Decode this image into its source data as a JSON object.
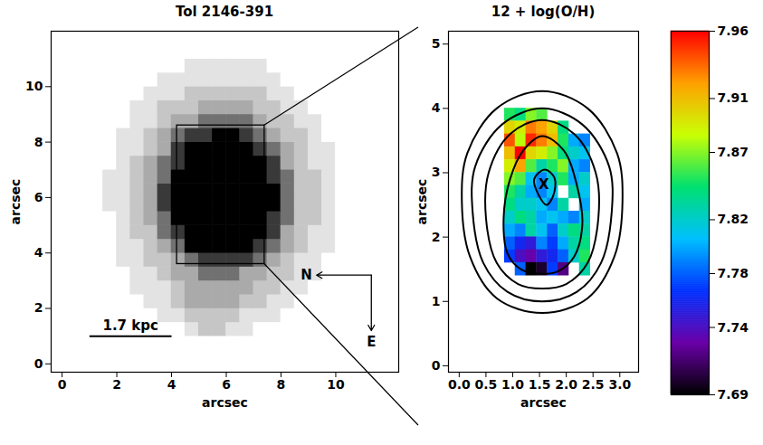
{
  "chart_data": [
    {
      "type": "image",
      "title": "Tol 2146-391",
      "xlabel": "arcsec",
      "ylabel": "arcsec",
      "xlim": [
        -0.4,
        12.3
      ],
      "ylim": [
        -0.3,
        12.0
      ],
      "xticks": [
        0,
        2,
        4,
        6,
        8,
        10
      ],
      "yticks": [
        0,
        2,
        4,
        6,
        8,
        10
      ],
      "image": {
        "x0": 0,
        "y0": 0,
        "cell": 0.5,
        "values": [
          [
            0,
            0,
            0,
            0,
            0,
            0,
            0,
            0,
            0,
            0,
            0,
            0,
            0,
            0,
            0,
            0,
            0,
            0,
            0,
            0,
            0,
            0,
            0,
            0
          ],
          [
            0,
            0,
            0,
            0,
            0,
            0,
            0,
            0,
            0,
            0,
            0,
            0,
            0,
            0,
            0,
            0,
            0,
            0,
            0,
            0,
            0,
            0,
            0,
            0
          ],
          [
            0,
            0,
            0,
            0,
            0,
            0,
            0,
            0,
            0,
            1,
            2,
            2,
            1,
            1,
            0,
            0,
            0,
            0,
            0,
            0,
            0,
            0,
            0,
            0
          ],
          [
            0,
            0,
            0,
            0,
            0,
            0,
            0,
            1,
            1,
            2,
            2,
            2,
            2,
            1,
            1,
            1,
            0,
            0,
            0,
            0,
            0,
            0,
            0,
            0
          ],
          [
            0,
            0,
            0,
            0,
            0,
            0,
            1,
            1,
            2,
            3,
            3,
            3,
            3,
            2,
            2,
            1,
            1,
            0,
            0,
            0,
            0,
            0,
            0,
            0
          ],
          [
            0,
            0,
            0,
            0,
            0,
            1,
            1,
            1,
            2,
            3,
            3,
            3,
            3,
            3,
            2,
            2,
            1,
            1,
            0,
            0,
            0,
            0,
            0,
            0
          ],
          [
            0,
            0,
            0,
            0,
            0,
            1,
            1,
            2,
            3,
            3,
            5,
            5,
            5,
            3,
            3,
            2,
            2,
            1,
            1,
            0,
            0,
            0,
            0,
            0
          ],
          [
            0,
            0,
            0,
            0,
            1,
            1,
            2,
            2,
            3,
            5,
            7,
            7,
            7,
            7,
            5,
            3,
            2,
            1,
            1,
            0,
            0,
            0,
            0,
            0
          ],
          [
            0,
            0,
            0,
            0,
            1,
            1,
            2,
            3,
            5,
            9,
            9,
            9,
            9,
            9,
            7,
            5,
            3,
            2,
            1,
            1,
            0,
            0,
            0,
            0
          ],
          [
            0,
            0,
            0,
            0,
            1,
            2,
            2,
            5,
            7,
            9,
            9,
            9,
            9,
            9,
            9,
            7,
            3,
            2,
            1,
            1,
            0,
            0,
            0,
            0
          ],
          [
            0,
            0,
            0,
            0,
            1,
            2,
            3,
            5,
            9,
            9,
            9,
            9,
            9,
            9,
            9,
            7,
            5,
            2,
            2,
            1,
            0,
            0,
            0,
            0
          ],
          [
            0,
            0,
            0,
            1,
            1,
            2,
            3,
            7,
            9,
            9,
            9,
            9,
            9,
            9,
            9,
            9,
            5,
            2,
            2,
            1,
            0,
            0,
            0,
            0
          ],
          [
            0,
            0,
            0,
            1,
            1,
            2,
            3,
            7,
            9,
            9,
            9,
            9,
            9,
            9,
            9,
            9,
            5,
            2,
            2,
            1,
            0,
            0,
            0,
            0
          ],
          [
            0,
            0,
            0,
            1,
            1,
            2,
            3,
            5,
            9,
            9,
            9,
            9,
            9,
            9,
            9,
            7,
            5,
            2,
            2,
            1,
            0,
            0,
            0,
            0
          ],
          [
            0,
            0,
            0,
            0,
            1,
            2,
            3,
            5,
            7,
            9,
            9,
            9,
            9,
            9,
            9,
            7,
            3,
            2,
            1,
            1,
            0,
            0,
            0,
            0
          ],
          [
            0,
            0,
            0,
            0,
            1,
            1,
            2,
            3,
            7,
            9,
            9,
            9,
            9,
            9,
            7,
            5,
            3,
            2,
            1,
            1,
            0,
            0,
            0,
            0
          ],
          [
            0,
            0,
            0,
            0,
            1,
            1,
            2,
            3,
            5,
            7,
            7,
            9,
            9,
            7,
            5,
            3,
            2,
            2,
            1,
            0,
            0,
            0,
            0,
            0
          ],
          [
            0,
            0,
            0,
            0,
            0,
            1,
            1,
            2,
            3,
            3,
            5,
            5,
            5,
            5,
            3,
            2,
            2,
            1,
            1,
            0,
            0,
            0,
            0,
            0
          ],
          [
            0,
            0,
            0,
            0,
            0,
            1,
            1,
            2,
            2,
            2,
            3,
            3,
            3,
            3,
            2,
            2,
            1,
            1,
            0,
            0,
            0,
            0,
            0,
            0
          ],
          [
            0,
            0,
            0,
            0,
            0,
            0,
            1,
            1,
            1,
            2,
            2,
            2,
            2,
            2,
            2,
            1,
            1,
            0,
            0,
            0,
            0,
            0,
            0,
            0
          ],
          [
            0,
            0,
            0,
            0,
            0,
            0,
            0,
            1,
            1,
            1,
            1,
            1,
            1,
            1,
            1,
            1,
            0,
            0,
            0,
            0,
            0,
            0,
            0,
            0
          ],
          [
            0,
            0,
            0,
            0,
            0,
            0,
            0,
            0,
            0,
            1,
            1,
            1,
            1,
            1,
            1,
            0,
            0,
            0,
            0,
            0,
            0,
            0,
            0,
            0
          ],
          [
            0,
            0,
            0,
            0,
            0,
            0,
            0,
            0,
            0,
            0,
            0,
            0,
            0,
            0,
            0,
            0,
            0,
            0,
            0,
            0,
            0,
            0,
            0,
            0
          ],
          [
            0,
            0,
            0,
            0,
            0,
            0,
            0,
            0,
            0,
            0,
            0,
            0,
            0,
            0,
            0,
            0,
            0,
            0,
            0,
            0,
            0,
            0,
            0,
            0
          ]
        ]
      },
      "zoom_box": {
        "x": [
          4.2,
          7.4
        ],
        "y": [
          3.6,
          8.6
        ]
      },
      "scale_bar": {
        "label": "1.7 kpc",
        "x": [
          1.0,
          4.0
        ],
        "y": 1.0
      },
      "compass": {
        "x": 11.3,
        "y": 3.2,
        "length": 2.0,
        "labels": [
          "N",
          "E"
        ]
      }
    },
    {
      "type": "heatmap",
      "title": "12 + log(O/H)",
      "xlabel": "arcsec",
      "ylabel": "arcsec",
      "xlim": [
        -0.2,
        3.35
      ],
      "ylim": [
        -0.1,
        5.2
      ],
      "xticks": [
        {
          "value": 0,
          "label": "0.0"
        },
        {
          "value": 0.5,
          "label": "0.5"
        },
        {
          "value": 1,
          "label": "1.0"
        },
        {
          "value": 1.5,
          "label": "1.5"
        },
        {
          "value": 2,
          "label": "2.0"
        },
        {
          "value": 2.5,
          "label": "2.5"
        },
        {
          "value": 3,
          "label": "3.0"
        }
      ],
      "yticks": [
        0,
        1,
        2,
        3,
        4,
        5
      ],
      "cells": {
        "size": 0.2,
        "x": [
          0.95,
          1.15,
          1.35,
          1.55,
          1.75,
          1.95,
          2.15,
          2.35
        ],
        "y": [
          3.9,
          3.7,
          3.5,
          3.3,
          3.1,
          2.9,
          2.7,
          2.5,
          2.3,
          2.1,
          1.9,
          1.7,
          1.5
        ],
        "values": [
          [
            7.85,
            7.84,
            7.87,
            7.86,
            null,
            null,
            null,
            null
          ],
          [
            7.9,
            7.89,
            7.93,
            7.92,
            7.9,
            7.84,
            null,
            null
          ],
          [
            7.94,
            7.88,
            7.95,
            7.93,
            7.91,
            7.85,
            7.8,
            7.79
          ],
          [
            7.91,
            7.96,
            7.9,
            7.89,
            7.87,
            7.84,
            7.82,
            7.81
          ],
          [
            7.89,
            7.92,
            7.86,
            7.83,
            7.85,
            7.87,
            7.8,
            7.79
          ],
          [
            7.87,
            7.86,
            7.81,
            7.79,
            7.82,
            7.85,
            7.8,
            7.82
          ],
          [
            7.85,
            7.83,
            7.8,
            7.79,
            7.81,
            null,
            7.83,
            7.81
          ],
          [
            7.84,
            7.82,
            7.82,
            7.81,
            7.79,
            7.83,
            null,
            7.8
          ],
          [
            7.82,
            7.84,
            7.83,
            7.8,
            7.81,
            7.8,
            7.79,
            7.82
          ],
          [
            7.8,
            7.79,
            7.83,
            7.81,
            7.78,
            7.82,
            7.84,
            7.83
          ],
          [
            7.78,
            7.76,
            7.75,
            7.79,
            7.77,
            7.8,
            7.83,
            7.84
          ],
          [
            7.77,
            7.74,
            7.73,
            7.75,
            7.76,
            7.78,
            7.82,
            7.85
          ],
          [
            null,
            7.78,
            7.69,
            7.7,
            7.77,
            7.72,
            null,
            7.83
          ]
        ]
      },
      "colorbar": {
        "lim": [
          7.69,
          7.96
        ],
        "ticks": [
          7.69,
          7.74,
          7.78,
          7.82,
          7.87,
          7.91,
          7.96
        ]
      },
      "contours": [
        [
          [
            1.55,
            4.27
          ],
          [
            2.4,
            4.0
          ],
          [
            2.95,
            3.3
          ],
          [
            3.05,
            2.55
          ],
          [
            2.9,
            1.7
          ],
          [
            2.4,
            1.05
          ],
          [
            1.55,
            0.82
          ],
          [
            0.7,
            1.05
          ],
          [
            0.2,
            1.7
          ],
          [
            0.05,
            2.55
          ],
          [
            0.15,
            3.3
          ],
          [
            0.7,
            4.0
          ]
        ],
        [
          [
            1.55,
            4.0
          ],
          [
            2.3,
            3.75
          ],
          [
            2.8,
            3.1
          ],
          [
            2.85,
            2.4
          ],
          [
            2.65,
            1.6
          ],
          [
            2.2,
            1.15
          ],
          [
            1.55,
            1.0
          ],
          [
            0.9,
            1.15
          ],
          [
            0.45,
            1.6
          ],
          [
            0.25,
            2.4
          ],
          [
            0.3,
            3.1
          ],
          [
            0.8,
            3.75
          ]
        ],
        [
          [
            1.55,
            3.82
          ],
          [
            2.15,
            3.6
          ],
          [
            2.55,
            3.0
          ],
          [
            2.6,
            2.3
          ],
          [
            2.4,
            1.6
          ],
          [
            2.0,
            1.27
          ],
          [
            1.55,
            1.2
          ],
          [
            1.1,
            1.27
          ],
          [
            0.7,
            1.6
          ],
          [
            0.5,
            2.3
          ],
          [
            0.55,
            3.0
          ],
          [
            0.95,
            3.6
          ]
        ],
        [
          [
            1.55,
            3.57
          ],
          [
            1.95,
            3.35
          ],
          [
            2.2,
            2.8
          ],
          [
            2.3,
            2.2
          ],
          [
            2.15,
            1.7
          ],
          [
            1.85,
            1.47
          ],
          [
            1.5,
            1.43
          ],
          [
            1.15,
            1.5
          ],
          [
            0.9,
            1.75
          ],
          [
            0.83,
            2.3
          ],
          [
            0.95,
            2.9
          ],
          [
            1.2,
            3.35
          ]
        ],
        [
          [
            1.6,
            3.05
          ],
          [
            1.78,
            2.92
          ],
          [
            1.76,
            2.65
          ],
          [
            1.63,
            2.5
          ],
          [
            1.48,
            2.66
          ],
          [
            1.4,
            2.9
          ]
        ]
      ],
      "annotations": [
        {
          "text": "X",
          "x": 1.58,
          "y": 2.82
        }
      ]
    }
  ]
}
